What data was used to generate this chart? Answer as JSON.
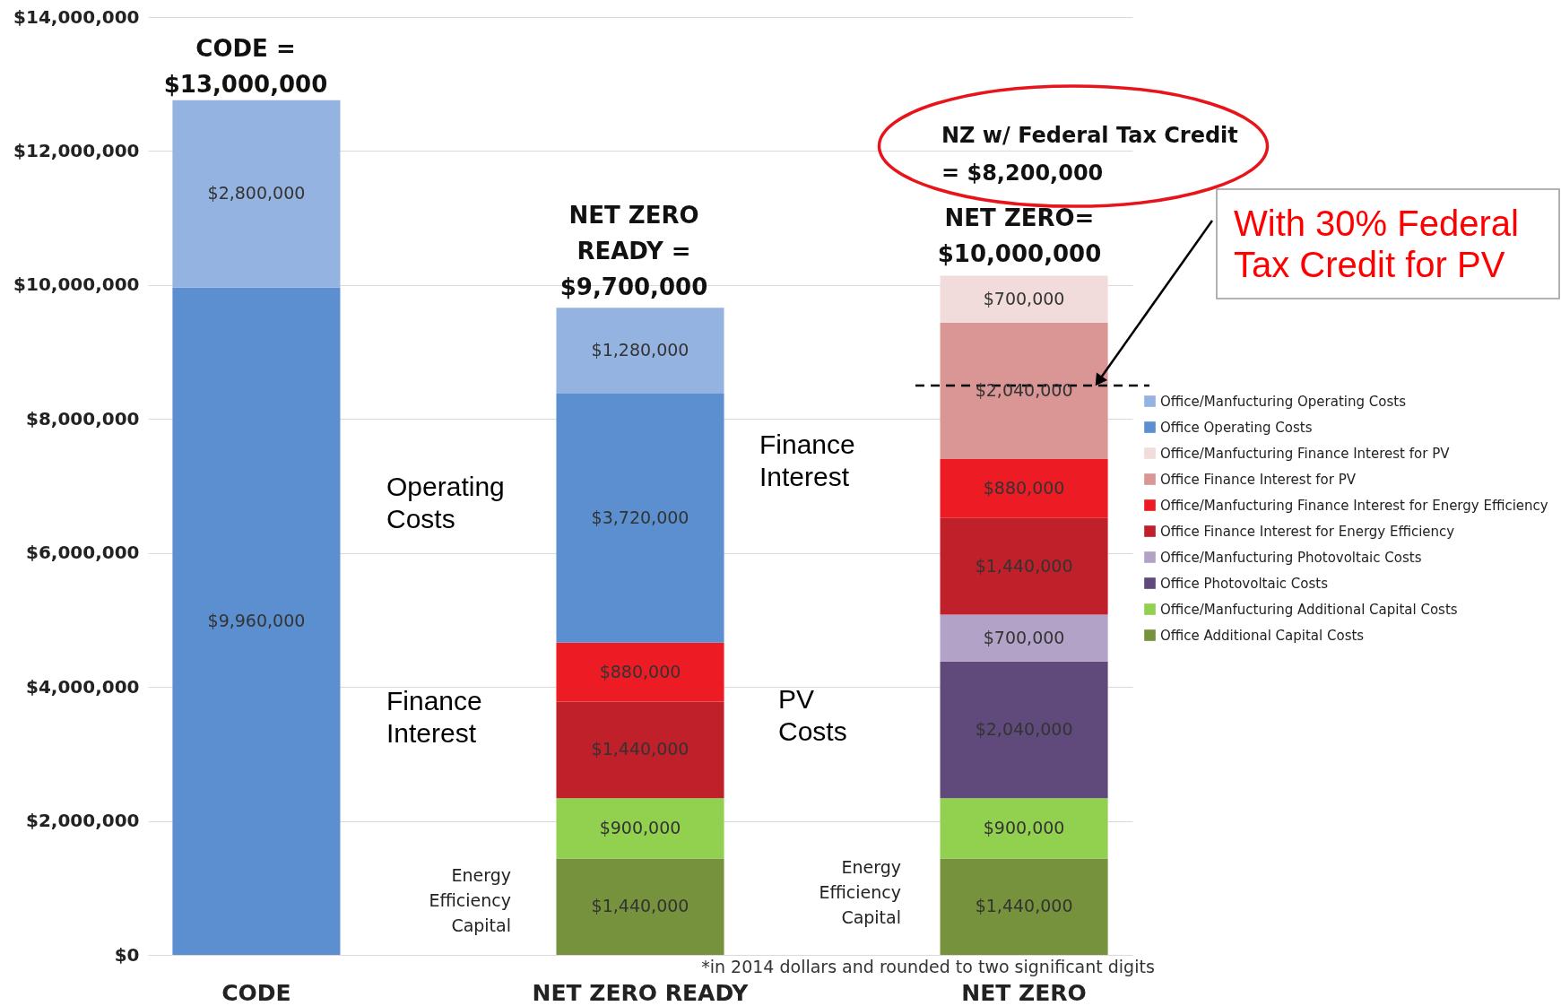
{
  "chart_data": {
    "type": "bar",
    "stacked": true,
    "categories": [
      "CODE",
      "NET ZERO READY",
      "NET ZERO"
    ],
    "series": [
      {
        "name": "Office Additional Capital Costs",
        "color": "#76923c",
        "values": [
          null,
          1440000,
          1440000
        ],
        "value_labels": [
          null,
          "$1,440,000",
          "$1,440,000"
        ]
      },
      {
        "name": "Office/Manfucturing Additional Capital Costs",
        "color": "#92d050",
        "values": [
          null,
          900000,
          900000
        ],
        "value_labels": [
          null,
          "$900,000",
          "$900,000"
        ]
      },
      {
        "name": "Office Photovoltaic Costs",
        "color": "#604a7b",
        "values": [
          null,
          null,
          2040000
        ],
        "value_labels": [
          null,
          null,
          "$2,040,000"
        ]
      },
      {
        "name": "Office/Manfucturing Photovoltaic Costs",
        "color": "#b3a2c7",
        "values": [
          null,
          null,
          700000
        ],
        "value_labels": [
          null,
          null,
          "$700,000"
        ]
      },
      {
        "name": "Office Finance Interest for Energy Efficiency",
        "color": "#c0202a",
        "values": [
          null,
          1440000,
          1440000
        ],
        "value_labels": [
          null,
          "$1,440,000",
          "$1,440,000"
        ]
      },
      {
        "name": "Office/Manfucturing Finance Interest for Energy Efficiency",
        "color": "#ed1c24",
        "values": [
          null,
          880000,
          880000
        ],
        "value_labels": [
          null,
          "$880,000",
          "$880,000"
        ]
      },
      {
        "name": "Office Finance Interest for PV",
        "color": "#d99694",
        "values": [
          null,
          null,
          2040000
        ],
        "value_labels": [
          null,
          null,
          "$2,040,000"
        ]
      },
      {
        "name": "Office/Manfucturing Finance Interest for PV",
        "color": "#f2dcdb",
        "values": [
          null,
          null,
          700000
        ],
        "value_labels": [
          null,
          null,
          "$700,000"
        ]
      },
      {
        "name": "Office Operating Costs",
        "color": "#5b8fd0",
        "values": [
          9960000,
          3720000,
          null
        ],
        "value_labels": [
          "$9,960,000",
          "$3,720,000",
          null
        ]
      },
      {
        "name": "Office/Manfucturing Operating Costs",
        "color": "#95b3e0",
        "values": [
          2800000,
          1280000,
          null
        ],
        "value_labels": [
          "$2,800,000",
          "$1,280,000",
          null
        ]
      }
    ],
    "ylim": [
      0,
      14000000
    ],
    "yticks": [
      {
        "value": 0,
        "label": "$0"
      },
      {
        "value": 2000000,
        "label": "$2,000,000"
      },
      {
        "value": 4000000,
        "label": "$4,000,000"
      },
      {
        "value": 6000000,
        "label": "$6,000,000"
      },
      {
        "value": 8000000,
        "label": "$8,000,000"
      },
      {
        "value": 10000000,
        "label": "$10,000,000"
      },
      {
        "value": 12000000,
        "label": "$12,000,000"
      },
      {
        "value": 14000000,
        "label": "$14,000,000"
      }
    ],
    "grid": "y",
    "legend": "right",
    "ref_lines": [
      {
        "axis": "y",
        "value": 8500000,
        "label": null,
        "color": "#000000",
        "line_style": "dashed"
      }
    ],
    "annotations": [
      "CODE =\n$13,000,000",
      "NET ZERO\nREADY =\n$9,700,000",
      "NET ZERO=\n$10,000,000",
      "NZ w/ Federal Tax Credit\n= $8,200,000",
      "With 30% Federal\nTax Credit for PV",
      "Operating\nCosts",
      "Finance\nInterest",
      "Energy\nEfficiency\nCapital",
      "Finance\nInterest",
      "PV\nCosts",
      "Energy\nEfficiency\nCapital",
      "*in 2014 dollars and rounded to two significant digits"
    ]
  }
}
